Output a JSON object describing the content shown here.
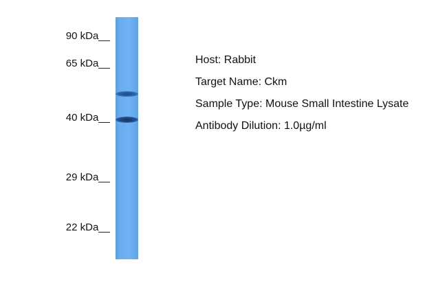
{
  "markers": [
    {
      "label": "90 kDa__"
    },
    {
      "label": "65 kDa__"
    },
    {
      "label": "40 kDa__"
    },
    {
      "label": "29 kDa__"
    },
    {
      "label": "22 kDa__"
    }
  ],
  "lane_color": "#6aaef0",
  "band_color": "#1a3f7a",
  "info": {
    "host": "Host: Rabbit",
    "target": "Target Name: Ckm",
    "sample": "Sample Type: Mouse Small Intestine Lysate",
    "dilution": "Antibody Dilution: 1.0µg/ml"
  }
}
